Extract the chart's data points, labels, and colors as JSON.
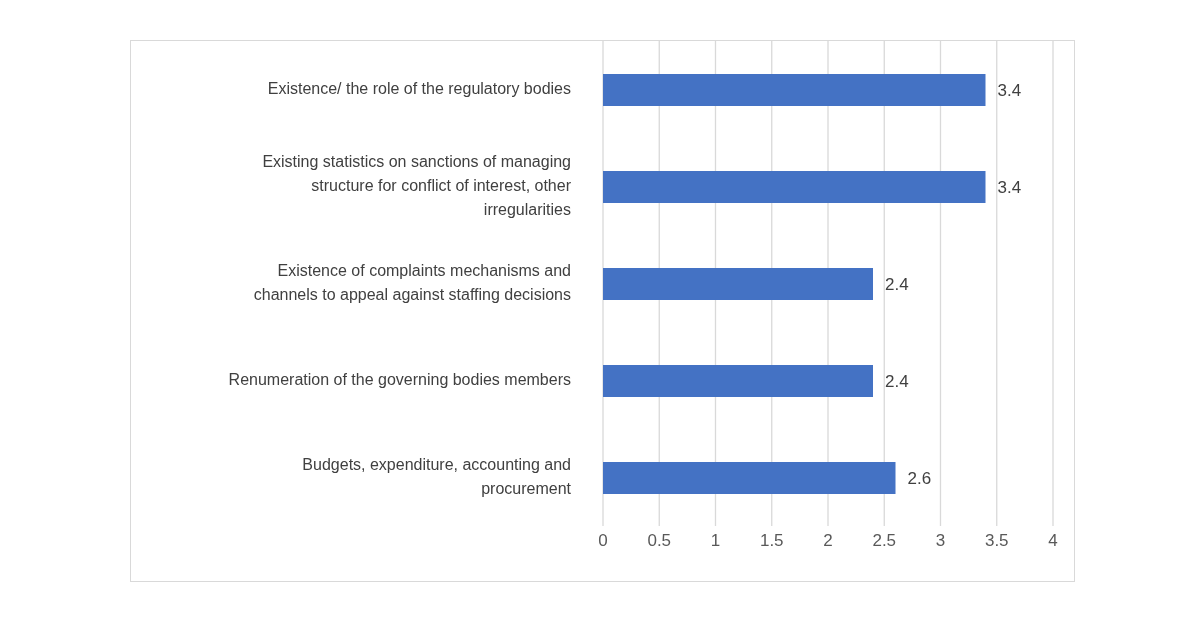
{
  "chart_data": {
    "type": "bar",
    "orientation": "horizontal",
    "categories": [
      "Existence/ the role of the regulatory bodies",
      "Existing statistics on sanctions of managing structure for conflict of interest, other irregularities",
      "Existence of complaints mechanisms and channels to appeal against staffing decisions",
      "Renumeration of the governing bodies members",
      "Budgets, expenditure, accounting and procurement"
    ],
    "values": [
      3.4,
      3.4,
      2.4,
      2.4,
      2.6
    ],
    "color": "#4472c4",
    "xlim": [
      0,
      4
    ],
    "xticks": [
      0,
      0.5,
      1,
      1.5,
      2,
      2.5,
      3,
      3.5,
      4
    ],
    "grid": "x",
    "data_labels": true
  }
}
